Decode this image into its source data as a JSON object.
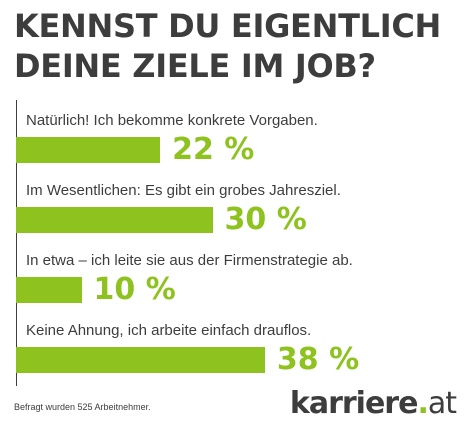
{
  "title_lines": [
    "KENNST DU EIGENTLICH",
    "DEINE ZIELE IM JOB?"
  ],
  "colors": {
    "bar": "#8dc21f",
    "text": "#3d3d3d"
  },
  "chart_data": {
    "type": "bar",
    "orientation": "horizontal",
    "unit": "%",
    "categories": [
      "Natürlich! Ich bekomme konkrete Vorgaben.",
      "Im Wesentlichen: Es gibt ein grobes Jahresziel.",
      "In etwa – ich leite sie aus der Firmenstrategie ab.",
      "Keine Ahnung, ich arbeite einfach drauflos."
    ],
    "values": [
      22,
      30,
      10,
      38
    ],
    "value_labels": [
      "22 %",
      "30 %",
      "10 %",
      "38 %"
    ]
  },
  "footnote": "Befragt wurden 525 Arbeitnehmer.",
  "logo": {
    "name": "karriere",
    "dot": ".",
    "tld": "at"
  }
}
